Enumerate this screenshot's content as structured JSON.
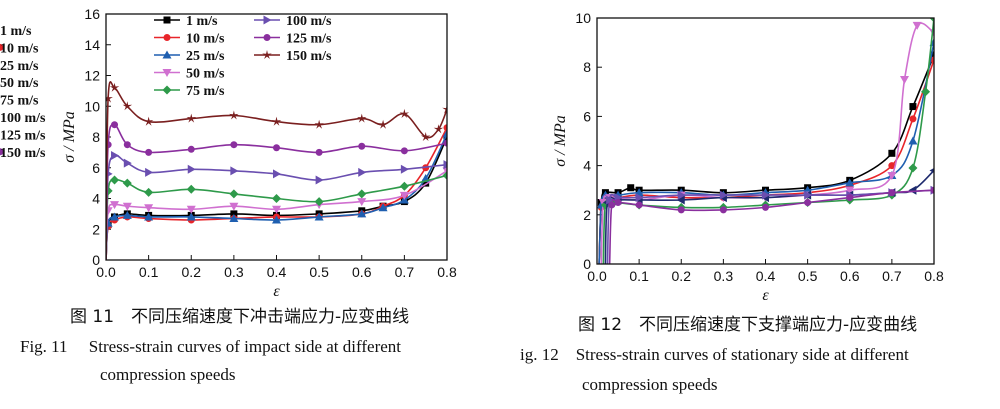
{
  "chart_data": [
    {
      "type": "line",
      "xlabel": "ε",
      "ylabel": "σ / MPa",
      "xlim": [
        0,
        0.8
      ],
      "ylim": [
        0,
        16
      ],
      "xticks": [
        "0.0",
        "0.1",
        "0.2",
        "0.3",
        "0.4",
        "0.5",
        "0.6",
        "0.7",
        "0.8"
      ],
      "yticks": [
        "0",
        "2",
        "4",
        "6",
        "8",
        "10",
        "12",
        "14",
        "16"
      ],
      "legend_position": "top-left",
      "series": [
        {
          "name": "1 m/s",
          "color": "#000000",
          "marker": "square",
          "x": [
            0,
            0.005,
            0.02,
            0.05,
            0.1,
            0.2,
            0.3,
            0.4,
            0.5,
            0.6,
            0.65,
            0.7,
            0.75,
            0.8
          ],
          "y": [
            0,
            2.3,
            2.8,
            3.0,
            2.9,
            2.9,
            3.0,
            2.9,
            3.0,
            3.2,
            3.5,
            3.8,
            5.0,
            8.0
          ]
        },
        {
          "name": "10 m/s",
          "color": "#e8252a",
          "marker": "circle",
          "x": [
            0,
            0.005,
            0.02,
            0.05,
            0.1,
            0.2,
            0.3,
            0.4,
            0.5,
            0.6,
            0.65,
            0.7,
            0.75,
            0.8
          ],
          "y": [
            0,
            2.2,
            2.6,
            2.8,
            2.7,
            2.6,
            2.7,
            2.8,
            2.8,
            3.0,
            3.5,
            4.2,
            6.0,
            8.6
          ]
        },
        {
          "name": "25 m/s",
          "color": "#1f5fb0",
          "marker": "triangle-up",
          "x": [
            0,
            0.005,
            0.02,
            0.05,
            0.1,
            0.2,
            0.3,
            0.4,
            0.5,
            0.6,
            0.65,
            0.7,
            0.75,
            0.8
          ],
          "y": [
            0,
            2.4,
            2.8,
            2.9,
            2.8,
            2.8,
            2.7,
            2.6,
            2.8,
            3.0,
            3.4,
            3.9,
            5.3,
            8.2
          ]
        },
        {
          "name": "50 m/s",
          "color": "#d070d0",
          "marker": "triangle-down",
          "x": [
            0,
            0.005,
            0.02,
            0.05,
            0.1,
            0.2,
            0.3,
            0.4,
            0.5,
            0.6,
            0.7,
            0.8
          ],
          "y": [
            0,
            3.2,
            3.6,
            3.5,
            3.4,
            3.3,
            3.5,
            3.3,
            3.6,
            3.8,
            4.2,
            5.8
          ]
        },
        {
          "name": "75 m/s",
          "color": "#2e9a4a",
          "marker": "diamond",
          "x": [
            0,
            0.005,
            0.02,
            0.05,
            0.1,
            0.2,
            0.3,
            0.4,
            0.5,
            0.6,
            0.7,
            0.8
          ],
          "y": [
            0,
            4.5,
            5.2,
            5.0,
            4.4,
            4.6,
            4.3,
            4.0,
            3.8,
            4.3,
            4.8,
            5.5
          ]
        },
        {
          "name": "100 m/s",
          "color": "#6a4fb0",
          "marker": "triangle-right",
          "x": [
            0,
            0.005,
            0.02,
            0.05,
            0.1,
            0.2,
            0.3,
            0.4,
            0.5,
            0.6,
            0.7,
            0.8
          ],
          "y": [
            0,
            5.6,
            6.8,
            6.3,
            5.7,
            5.9,
            5.8,
            5.6,
            5.2,
            5.7,
            5.9,
            6.2
          ]
        },
        {
          "name": "125 m/s",
          "color": "#8a2f9e",
          "marker": "circle",
          "x": [
            0,
            0.005,
            0.02,
            0.05,
            0.1,
            0.2,
            0.3,
            0.4,
            0.5,
            0.6,
            0.7,
            0.8
          ],
          "y": [
            0,
            7.5,
            8.8,
            7.5,
            7.0,
            7.2,
            7.5,
            7.3,
            7.0,
            7.4,
            7.1,
            7.6
          ]
        },
        {
          "name": "150 m/s",
          "color": "#7a1f1f",
          "marker": "star",
          "x": [
            0,
            0.005,
            0.02,
            0.05,
            0.1,
            0.2,
            0.3,
            0.4,
            0.5,
            0.6,
            0.65,
            0.7,
            0.75,
            0.78,
            0.8
          ],
          "y": [
            0,
            10.5,
            11.2,
            10.0,
            9.0,
            9.2,
            9.4,
            9.0,
            8.8,
            9.2,
            8.8,
            9.5,
            8.0,
            8.5,
            9.8
          ]
        }
      ]
    },
    {
      "type": "line",
      "xlabel": "ε",
      "ylabel": "σ / MPa",
      "xlim": [
        0,
        0.8
      ],
      "ylim": [
        0,
        10
      ],
      "xticks": [
        "0.0",
        "0.1",
        "0.2",
        "0.3",
        "0.4",
        "0.5",
        "0.6",
        "0.7",
        "0.8"
      ],
      "yticks": [
        "0",
        "2",
        "4",
        "6",
        "8",
        "10"
      ],
      "legend_position": "top-center",
      "series": [
        {
          "name": "1 m/s",
          "color": "#000000",
          "marker": "square",
          "x": [
            0.005,
            0.01,
            0.02,
            0.05,
            0.08,
            0.1,
            0.2,
            0.3,
            0.4,
            0.5,
            0.6,
            0.7,
            0.75,
            0.8
          ],
          "y": [
            0,
            2.5,
            2.9,
            2.9,
            3.1,
            3.0,
            3.0,
            2.9,
            3.0,
            3.1,
            3.4,
            4.5,
            6.4,
            8.5
          ]
        },
        {
          "name": "10 m/s",
          "color": "#e8252a",
          "marker": "circle",
          "x": [
            0.005,
            0.01,
            0.02,
            0.05,
            0.1,
            0.2,
            0.3,
            0.4,
            0.5,
            0.6,
            0.7,
            0.75,
            0.8
          ],
          "y": [
            0,
            2.3,
            2.7,
            2.7,
            2.8,
            2.7,
            2.7,
            2.8,
            2.9,
            3.2,
            4.0,
            5.9,
            8.3
          ]
        },
        {
          "name": "25 m/s",
          "color": "#1f5fb0",
          "marker": "triangle-up",
          "x": [
            0.005,
            0.01,
            0.02,
            0.05,
            0.1,
            0.2,
            0.3,
            0.4,
            0.5,
            0.6,
            0.7,
            0.75,
            0.8
          ],
          "y": [
            0,
            2.4,
            2.8,
            2.8,
            2.9,
            2.9,
            2.8,
            2.9,
            3.0,
            3.3,
            3.6,
            5.0,
            9.0
          ]
        },
        {
          "name": "50 m/s",
          "color": "#d070d0",
          "marker": "triangle-down",
          "x": [
            0.01,
            0.015,
            0.03,
            0.1,
            0.2,
            0.3,
            0.4,
            0.5,
            0.6,
            0.7,
            0.73,
            0.76,
            0.8
          ],
          "y": [
            0,
            2.5,
            2.7,
            2.6,
            2.8,
            2.7,
            2.7,
            2.8,
            3.0,
            3.6,
            7.5,
            9.7,
            9.4
          ]
        },
        {
          "name": "75 m/s",
          "color": "#2e9a4a",
          "marker": "diamond",
          "x": [
            0.015,
            0.02,
            0.04,
            0.1,
            0.2,
            0.3,
            0.4,
            0.5,
            0.6,
            0.7,
            0.75,
            0.78,
            0.8
          ],
          "y": [
            0,
            2.4,
            2.5,
            2.4,
            2.3,
            2.3,
            2.4,
            2.5,
            2.6,
            2.8,
            3.9,
            7.0,
            10.0
          ]
        },
        {
          "name": "100 m/s",
          "color": "#1e2a6e",
          "marker": "triangle-left",
          "x": [
            0.02,
            0.025,
            0.05,
            0.1,
            0.2,
            0.3,
            0.4,
            0.5,
            0.6,
            0.7,
            0.75,
            0.8
          ],
          "y": [
            0,
            2.5,
            2.6,
            2.6,
            2.6,
            2.7,
            2.7,
            2.8,
            2.8,
            2.9,
            3.0,
            3.8
          ]
        },
        {
          "name": "125 m/s",
          "color": "#6a4fb0",
          "marker": "triangle-right",
          "x": [
            0.025,
            0.03,
            0.05,
            0.1,
            0.2,
            0.3,
            0.4,
            0.5,
            0.6,
            0.7,
            0.8
          ],
          "y": [
            0,
            2.6,
            2.7,
            2.7,
            2.8,
            2.8,
            2.8,
            2.8,
            2.8,
            2.9,
            3.0
          ]
        },
        {
          "name": "150 m/s",
          "color": "#8a2f9e",
          "marker": "circle",
          "x": [
            0.03,
            0.035,
            0.05,
            0.1,
            0.2,
            0.3,
            0.4,
            0.5,
            0.6,
            0.7,
            0.8
          ],
          "y": [
            0,
            2.4,
            2.5,
            2.4,
            2.2,
            2.2,
            2.3,
            2.5,
            2.7,
            2.9,
            3.0
          ]
        }
      ]
    }
  ],
  "captions": {
    "left": {
      "cn": "图 11　不同压缩速度下冲击端应力-应变曲线",
      "en_line1": "Fig. 11　 Stress-strain curves of impact side at different",
      "en_line2": "compression speeds"
    },
    "right": {
      "cn": "图 12　不同压缩速度下支撑端应力-应变曲线",
      "en_line1": "ig. 12　Stress-strain curves of stationary side at different",
      "en_line2": "compression speeds"
    }
  }
}
